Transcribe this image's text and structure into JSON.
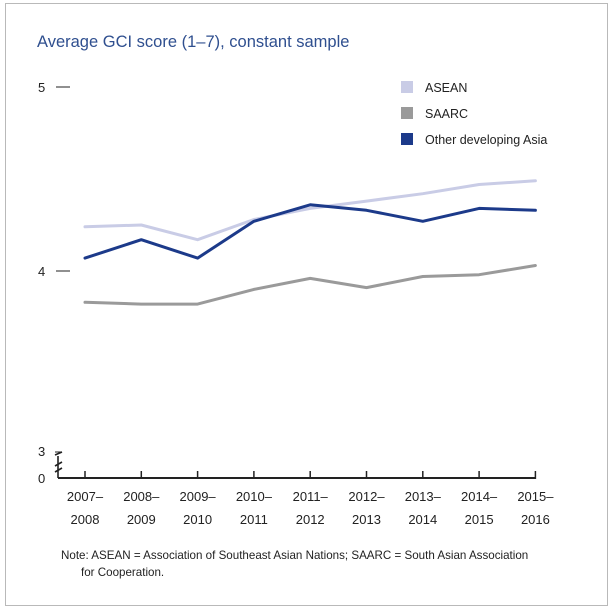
{
  "chart_data": {
    "type": "line",
    "title": "Average GCI score (1–7), constant sample",
    "xlabel": "",
    "ylabel": "",
    "categories": [
      [
        "2007–",
        "2008"
      ],
      [
        "2008–",
        "2009"
      ],
      [
        "2009–",
        "2010"
      ],
      [
        "2010–",
        "2011"
      ],
      [
        "2011–",
        "2012"
      ],
      [
        "2012–",
        "2013"
      ],
      [
        "2013–",
        "2014"
      ],
      [
        "2014–",
        "2015"
      ],
      [
        "2015–",
        "2016"
      ]
    ],
    "y_ticks": [
      {
        "value": 5,
        "label": "5"
      },
      {
        "value": 4,
        "label": "4"
      },
      {
        "value": 3,
        "label": "3"
      },
      {
        "value": 0,
        "label": "0"
      }
    ],
    "axis_break": true,
    "ylim_upper_segment": [
      3,
      5
    ],
    "legend_position": "top-right",
    "grid": false,
    "series": [
      {
        "name": "ASEAN",
        "color": "#c9cce6",
        "values": [
          4.24,
          4.25,
          4.17,
          4.28,
          4.34,
          4.38,
          4.42,
          4.47,
          4.49
        ]
      },
      {
        "name": "SAARC",
        "color": "#9a9a9a",
        "values": [
          3.83,
          3.82,
          3.82,
          3.9,
          3.96,
          3.91,
          3.97,
          3.98,
          4.03
        ]
      },
      {
        "name": "Other developing Asia",
        "color": "#1c3a8a",
        "values": [
          4.07,
          4.17,
          4.07,
          4.27,
          4.36,
          4.33,
          4.27,
          4.34,
          4.33
        ]
      }
    ]
  },
  "note": {
    "line1": "Note: ASEAN = Association of Southeast Asian Nations; SAARC = South Asian Association",
    "line2": "for Cooperation."
  }
}
